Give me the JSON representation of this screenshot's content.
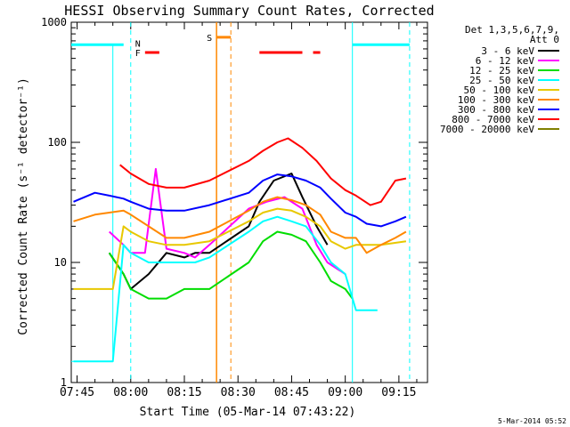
{
  "chart_data": {
    "type": "line",
    "title": "HESSI Observing Summary Count Rates, Corrected",
    "xlabel": "Start Time (05-Mar-14 07:43:22)",
    "ylabel": "Corrected Count Rate (s⁻¹ detector⁻¹)",
    "yscale": "log",
    "ylim": [
      1,
      1000
    ],
    "xlim": [
      "07:43:22",
      "09:23"
    ],
    "x_ticks": [
      "07:45",
      "08:00",
      "08:15",
      "08:30",
      "08:45",
      "09:00",
      "09:15"
    ],
    "y_ticks": [
      "1",
      "10",
      "100",
      "1000"
    ],
    "grid": false,
    "legend_title": [
      "Det 1,3,5,6,7,9,",
      "Att 0"
    ],
    "legend_position": "right",
    "series": [
      {
        "name": "3 - 6 keV",
        "color": "#000000",
        "x": [
          "07:54",
          "07:58",
          "08:00",
          "08:05",
          "08:10",
          "08:15",
          "08:18",
          "08:22",
          "08:33",
          "08:36",
          "08:40",
          "08:45",
          "08:48",
          "08:52",
          "08:55"
        ],
        "y": [
          12,
          8,
          6,
          8,
          12,
          11,
          12,
          12,
          20,
          32,
          48,
          55,
          35,
          20,
          14
        ]
      },
      {
        "name": "6 - 12 keV",
        "color": "#ff00ff",
        "x": [
          "07:54",
          "07:58",
          "08:00",
          "08:04",
          "08:07",
          "08:10",
          "08:15",
          "08:18",
          "08:22",
          "08:33",
          "08:38",
          "08:43",
          "08:48",
          "08:52",
          "08:55",
          "09:00"
        ],
        "y": [
          18,
          14,
          12,
          12,
          60,
          13,
          12,
          11,
          14,
          28,
          32,
          35,
          28,
          14,
          10,
          8
        ]
      },
      {
        "name": "12 - 25 keV",
        "color": "#00dd00",
        "x": [
          "07:54",
          "07:58",
          "08:00",
          "08:05",
          "08:10",
          "08:15",
          "08:18",
          "08:22",
          "08:33",
          "08:37",
          "08:41",
          "08:45",
          "08:49",
          "08:53",
          "08:56",
          "09:00",
          "09:02"
        ],
        "y": [
          12,
          8,
          6,
          5,
          5,
          6,
          6,
          6,
          10,
          15,
          18,
          17,
          15,
          10,
          7,
          6,
          5
        ]
      },
      {
        "name": "25 - 50 keV",
        "color": "#00ffff",
        "x": [
          "07:44",
          "07:55",
          "07:58",
          "08:00",
          "08:05",
          "08:10",
          "08:15",
          "08:18",
          "08:22",
          "08:33",
          "08:37",
          "08:41",
          "08:45",
          "08:49",
          "08:53",
          "08:56",
          "09:00",
          "09:03",
          "09:09"
        ],
        "y": [
          1.5,
          1.5,
          14,
          12,
          10,
          10,
          10,
          10,
          11,
          18,
          22,
          24,
          22,
          20,
          14,
          10,
          8,
          4,
          4
        ]
      },
      {
        "name": "50 - 100 keV",
        "color": "#e8c800",
        "x": [
          "07:44",
          "07:55",
          "07:58",
          "08:00",
          "08:05",
          "08:10",
          "08:15",
          "08:22",
          "08:33",
          "08:37",
          "08:41",
          "08:45",
          "08:49",
          "08:53",
          "08:56",
          "09:00",
          "09:03",
          "09:10",
          "09:17"
        ],
        "y": [
          6,
          6,
          20,
          18,
          15,
          14,
          14,
          15,
          22,
          26,
          28,
          27,
          24,
          20,
          15,
          13,
          14,
          14,
          15
        ]
      },
      {
        "name": "100 - 300 keV",
        "color": "#ff8800",
        "x": [
          "07:44",
          "07:50",
          "07:54",
          "07:58",
          "08:00",
          "08:05",
          "08:10",
          "08:15",
          "08:22",
          "08:33",
          "08:37",
          "08:41",
          "08:45",
          "08:49",
          "08:53",
          "08:56",
          "09:00",
          "09:03",
          "09:06",
          "09:10",
          "09:14",
          "09:17"
        ],
        "y": [
          22,
          25,
          26,
          27,
          25,
          20,
          16,
          16,
          18,
          27,
          32,
          35,
          33,
          30,
          25,
          18,
          16,
          16,
          12,
          14,
          16,
          18
        ]
      },
      {
        "name": "300 - 800 keV",
        "color": "#0000ff",
        "x": [
          "07:44",
          "07:50",
          "07:54",
          "07:58",
          "08:00",
          "08:05",
          "08:10",
          "08:15",
          "08:22",
          "08:33",
          "08:37",
          "08:41",
          "08:45",
          "08:49",
          "08:53",
          "08:56",
          "09:00",
          "09:03",
          "09:06",
          "09:10",
          "09:14",
          "09:17"
        ],
        "y": [
          32,
          38,
          36,
          34,
          32,
          28,
          27,
          27,
          30,
          38,
          48,
          54,
          52,
          48,
          42,
          34,
          26,
          24,
          21,
          20,
          22,
          24
        ]
      },
      {
        "name": "800 - 7000 keV",
        "color": "#ff0000",
        "x": [
          "07:57",
          "08:00",
          "08:05",
          "08:10",
          "08:15",
          "08:22",
          "08:33",
          "08:37",
          "08:41",
          "08:44",
          "08:48",
          "08:52",
          "08:56",
          "09:00",
          "09:03",
          "09:07",
          "09:10",
          "09:14",
          "09:17"
        ],
        "y": [
          65,
          55,
          45,
          42,
          42,
          48,
          70,
          85,
          100,
          108,
          90,
          70,
          50,
          40,
          36,
          30,
          32,
          48,
          50
        ]
      },
      {
        "name": "7000 - 20000 keV",
        "color": "#808000",
        "x": [],
        "y": []
      }
    ],
    "annotations": [
      {
        "text": "N",
        "color": "#00ffff"
      },
      {
        "text": "F",
        "color": "#ff0000"
      },
      {
        "text": "S",
        "color": "#ff8800"
      }
    ]
  },
  "footer_date": "5-Mar-2014 05:52"
}
